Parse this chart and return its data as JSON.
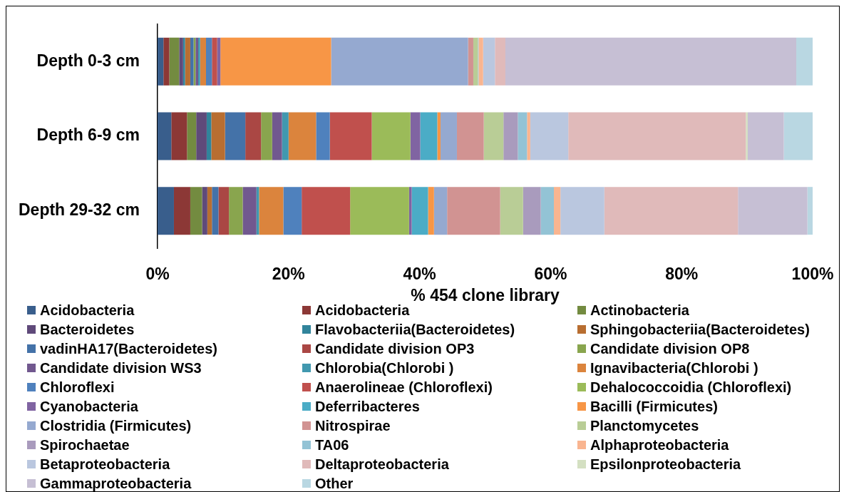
{
  "chart_data": {
    "type": "bar",
    "orientation": "horizontal",
    "stacked": true,
    "categories": [
      "Depth 0-3 cm",
      "Depth 6-9 cm",
      "Depth 29-32 cm"
    ],
    "xlabel": "% 454 clone library",
    "xlim": [
      0,
      100
    ],
    "xticks": [
      {
        "value": 0,
        "label": "0%"
      },
      {
        "value": 20,
        "label": "20%"
      },
      {
        "value": 40,
        "label": "40%"
      },
      {
        "value": 60,
        "label": "60%"
      },
      {
        "value": 80,
        "label": "80%"
      },
      {
        "value": 100,
        "label": "100%"
      }
    ],
    "legend": "bottom",
    "series": [
      {
        "name": "Acidobacteria",
        "color": "#395e8c",
        "values": [
          0.9,
          2.1,
          2.5
        ]
      },
      {
        "name": "Acidobacteria",
        "color": "#8c3836",
        "values": [
          0.9,
          2.4,
          2.5
        ]
      },
      {
        "name": "Actinobacteria",
        "color": "#738b40",
        "values": [
          1.5,
          1.4,
          1.8
        ]
      },
      {
        "name": "Bacteroidetes",
        "color": "#5f4a7a",
        "values": [
          0.6,
          1.6,
          0.8
        ]
      },
      {
        "name": "Flavobacteriia(Bacteroidetes)",
        "color": "#31849b",
        "values": [
          0.3,
          0.7,
          0
        ]
      },
      {
        "name": "Sphingobacteriia(Bacteroidetes)",
        "color": "#b86e31",
        "values": [
          0.8,
          2.1,
          0.7
        ]
      },
      {
        "name": "vadinHA17(Bacteroidetes)",
        "color": "#4472a8",
        "values": [
          0.5,
          3.1,
          1.0
        ]
      },
      {
        "name": "Candidate division OP3",
        "color": "#aa4744",
        "values": [
          0,
          2.4,
          1.6
        ]
      },
      {
        "name": "Candidate division OP8",
        "color": "#89a54e",
        "values": [
          0.3,
          1.7,
          2.1
        ]
      },
      {
        "name": "Candidate division WS3",
        "color": "#71588f",
        "values": [
          0.4,
          1.5,
          2.1
        ]
      },
      {
        "name": "Chlorobia(Chlorobi )",
        "color": "#4198af",
        "values": [
          0.3,
          1.0,
          0.4
        ]
      },
      {
        "name": "Ignavibacteria(Chlorobi )",
        "color": "#db843d",
        "values": [
          0.9,
          4.2,
          3.7
        ]
      },
      {
        "name": "Chloroflexi",
        "color": "#4f81bd",
        "values": [
          0.9,
          2.1,
          2.8
        ]
      },
      {
        "name": "Anaerolineae (Chloroflexi)",
        "color": "#c0504d",
        "values": [
          0.8,
          6.4,
          7.4
        ]
      },
      {
        "name": "Dehalococcoidia (Chloroflexi)",
        "color": "#9bbb59",
        "values": [
          0,
          5.9,
          9.0
        ]
      },
      {
        "name": "Cyanobacteria",
        "color": "#8064a2",
        "values": [
          0.5,
          1.5,
          0.4
        ]
      },
      {
        "name": "Deferribacteres",
        "color": "#4bacc6",
        "values": [
          0,
          2.6,
          2.5
        ]
      },
      {
        "name": "Bacilli (Firmicutes)",
        "color": "#f79646",
        "values": [
          16.9,
          0.5,
          0.9
        ]
      },
      {
        "name": "Clostridia (Firmicutes)",
        "color": "#95a9d0",
        "values": [
          20.9,
          2.5,
          2.0
        ]
      },
      {
        "name": "Nitrospirae",
        "color": "#d19392",
        "values": [
          0.8,
          4.1,
          8.1
        ]
      },
      {
        "name": "Planctomycetes",
        "color": "#b9cd96",
        "values": [
          0.7,
          3.0,
          3.5
        ]
      },
      {
        "name": "Spirochaetae",
        "color": "#a99bbd",
        "values": [
          0,
          2.2,
          2.7
        ]
      },
      {
        "name": "TA06",
        "color": "#93c3d5",
        "values": [
          0.1,
          1.4,
          2.0
        ]
      },
      {
        "name": "Alphaproteobacteria",
        "color": "#f9b590",
        "values": [
          0.7,
          0.5,
          1.0
        ]
      },
      {
        "name": "Betaproteobacteria",
        "color": "#bac7df",
        "values": [
          1.8,
          5.8,
          6.7
        ]
      },
      {
        "name": "Deltaproteobacteria",
        "color": "#e0baba",
        "values": [
          1.6,
          27.1,
          20.4
        ]
      },
      {
        "name": "Epsilonproteobacteria",
        "color": "#d4e0c2",
        "values": [
          0,
          0.3,
          0
        ]
      },
      {
        "name": "Gammaproteobacteria",
        "color": "#c6bfd4",
        "values": [
          44.4,
          5.5,
          10.6
        ]
      },
      {
        "name": "Other",
        "color": "#b9d7e2",
        "values": [
          2.5,
          4.4,
          0.8
        ]
      }
    ]
  }
}
